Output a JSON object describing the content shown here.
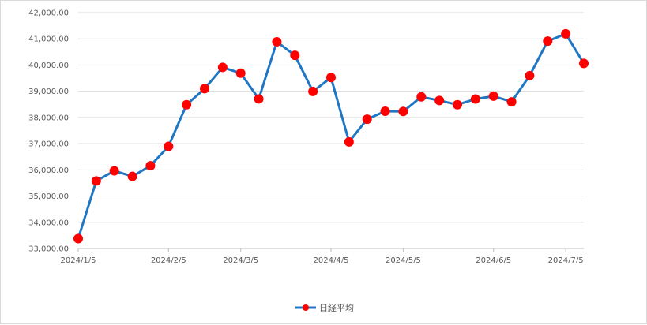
{
  "chart_data": {
    "type": "line",
    "title": "",
    "xlabel": "",
    "ylabel": "",
    "ylim": [
      33000,
      42000
    ],
    "y_ticks": [
      "42,000.00",
      "41,000.00",
      "40,000.00",
      "39,000.00",
      "38,000.00",
      "37,000.00",
      "36,000.00",
      "35,000.00",
      "34,000.00",
      "33,000.00"
    ],
    "y_tick_values": [
      42000,
      41000,
      40000,
      39000,
      38000,
      37000,
      36000,
      35000,
      34000,
      33000
    ],
    "x_ticks": [
      "2024/1/5",
      "2024/2/5",
      "2024/3/5",
      "2024/4/5",
      "2024/5/5",
      "2024/6/5",
      "2024/7/5"
    ],
    "x_tick_indices": [
      0,
      5,
      9,
      14,
      18,
      23,
      27
    ],
    "grid": true,
    "legend_position": "bottom",
    "series": [
      {
        "name": "日経平均",
        "color": "#1f77c4",
        "marker_color": "#ff0000",
        "values": [
          33377,
          35577,
          35963,
          35751,
          36158,
          36897,
          38487,
          39098,
          39910,
          39688,
          38707,
          40888,
          40369,
          38992,
          39523,
          37068,
          37934,
          38236,
          38229,
          38787,
          38646,
          38487,
          38703,
          38814,
          38596,
          39594,
          40913,
          41190,
          40063
        ]
      }
    ]
  }
}
